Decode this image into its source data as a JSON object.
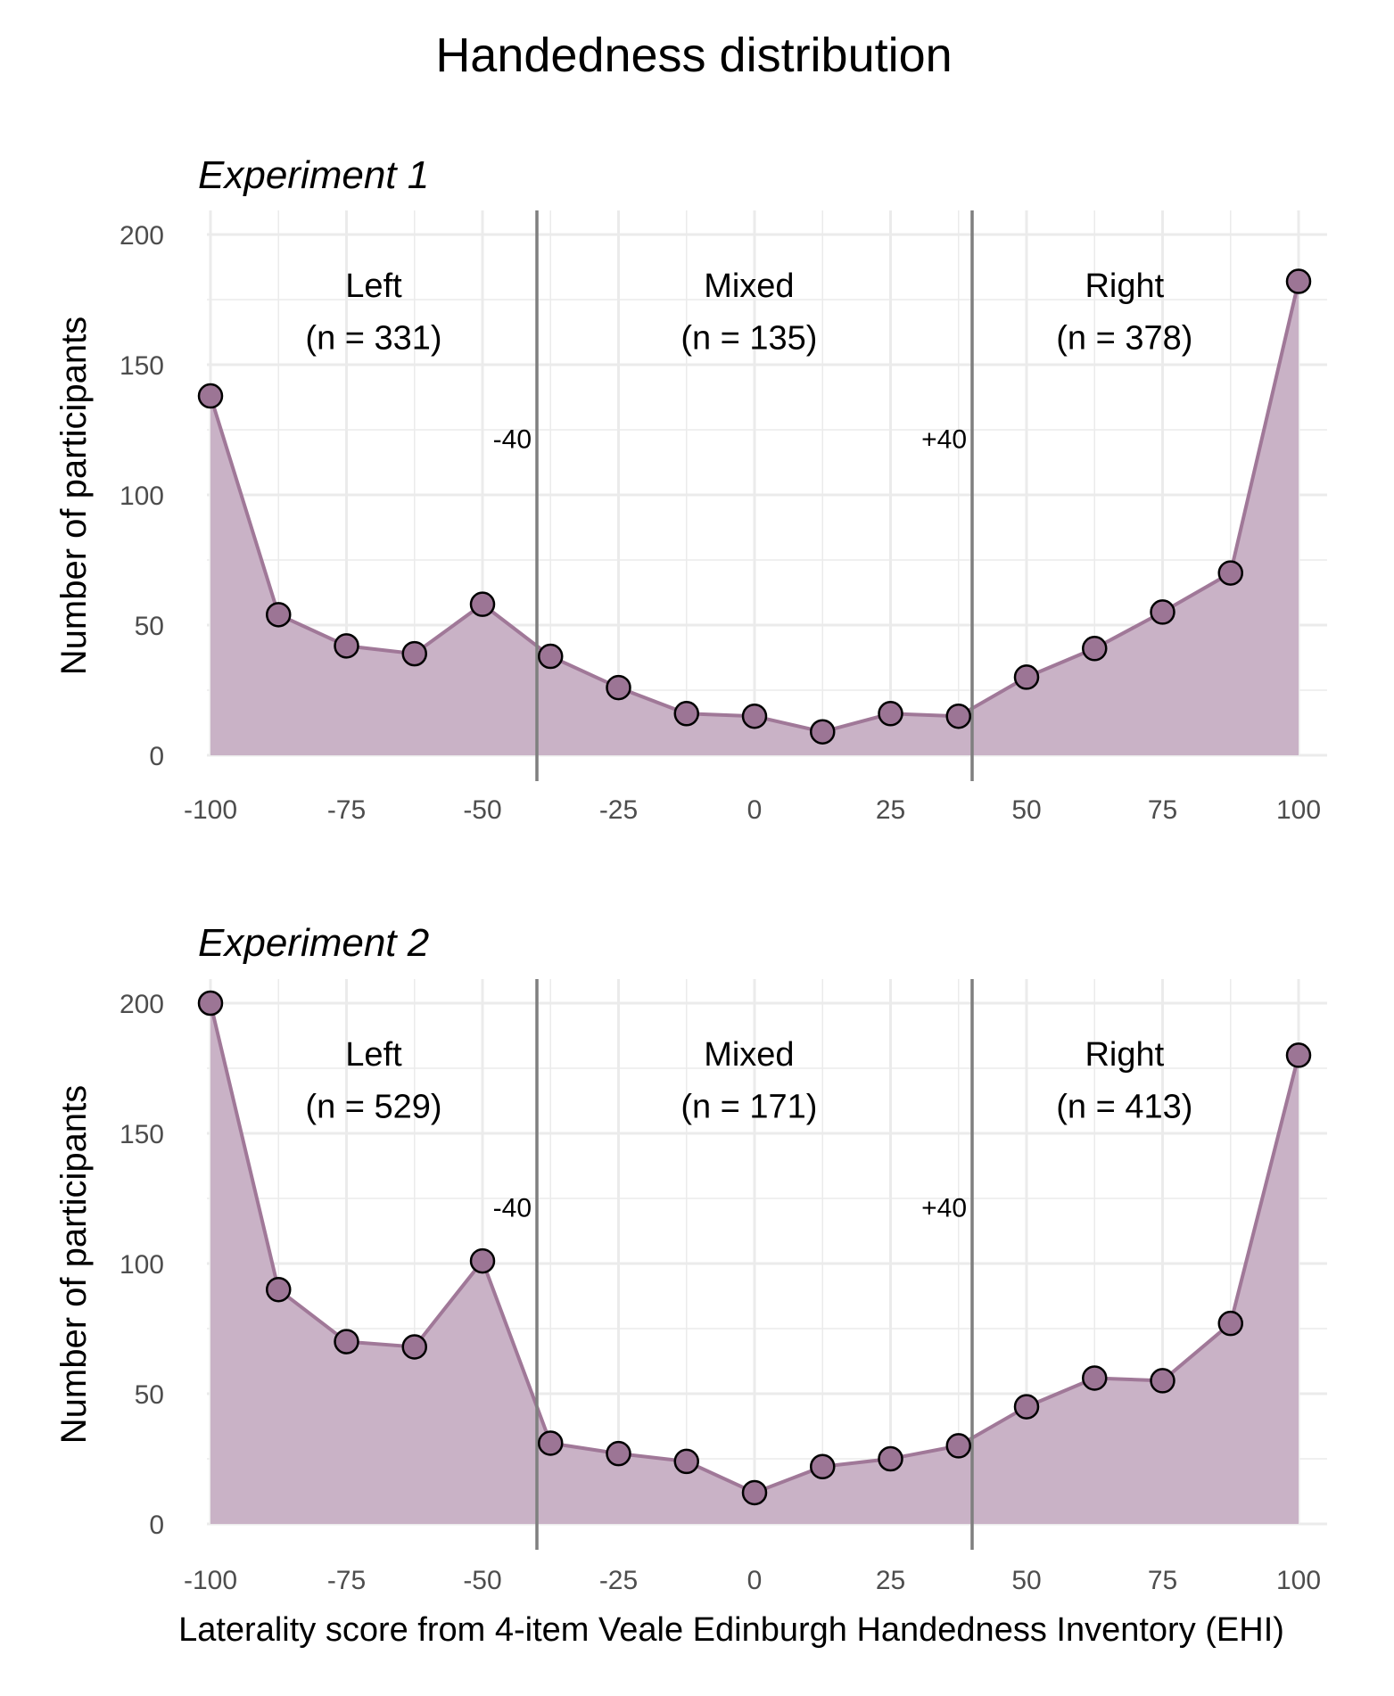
{
  "title": "Handedness distribution",
  "xlabel": "Laterality score from 4-item Veale Edinburgh Handedness Inventory (EHI)",
  "colors": {
    "fill": "#c9b2c6",
    "line": "#a07898",
    "point": "#9c7595",
    "point_edge": "#000000",
    "vline": "#7f7f7f",
    "grid": "#ebebeb"
  },
  "chart_data": [
    {
      "type": "area",
      "title": "Experiment 1",
      "ylabel": "Number of participants",
      "xlim": [
        -100,
        100
      ],
      "ylim": [
        0,
        200
      ],
      "xticks": [
        -100,
        -75,
        -50,
        -25,
        0,
        25,
        50,
        75,
        100
      ],
      "yticks": [
        0,
        50,
        100,
        150,
        200
      ],
      "x": [
        -100,
        -87.5,
        -75,
        -62.5,
        -50,
        -37.5,
        -25,
        -12.5,
        0,
        12.5,
        25,
        37.5,
        50,
        62.5,
        75,
        87.5,
        100
      ],
      "y": [
        138,
        54,
        42,
        39,
        58,
        38,
        26,
        16,
        15,
        9,
        16,
        15,
        30,
        41,
        55,
        70,
        182
      ],
      "thresholds": [
        {
          "x": -40,
          "label": "-40"
        },
        {
          "x": 40,
          "label": "+40"
        }
      ],
      "regions": [
        {
          "name": "Left",
          "n": "(n = 331)",
          "x": -70
        },
        {
          "name": "Mixed",
          "n": "(n = 135)",
          "x": -1
        },
        {
          "name": "Right",
          "n": "(n = 378)",
          "x": 68
        }
      ]
    },
    {
      "type": "area",
      "title": "Experiment 2",
      "ylabel": "Number of participants",
      "xlim": [
        -100,
        100
      ],
      "ylim": [
        0,
        200
      ],
      "xticks": [
        -100,
        -75,
        -50,
        -25,
        0,
        25,
        50,
        75,
        100
      ],
      "yticks": [
        0,
        50,
        100,
        150,
        200
      ],
      "x": [
        -100,
        -87.5,
        -75,
        -62.5,
        -50,
        -37.5,
        -25,
        -12.5,
        0,
        12.5,
        25,
        37.5,
        50,
        62.5,
        75,
        87.5,
        100
      ],
      "y": [
        200,
        90,
        70,
        68,
        101,
        31,
        27,
        24,
        12,
        22,
        25,
        30,
        45,
        56,
        55,
        77,
        180
      ],
      "thresholds": [
        {
          "x": -40,
          "label": "-40"
        },
        {
          "x": 40,
          "label": "+40"
        }
      ],
      "regions": [
        {
          "name": "Left",
          "n": "(n = 529)",
          "x": -70
        },
        {
          "name": "Mixed",
          "n": "(n = 171)",
          "x": -1
        },
        {
          "name": "Right",
          "n": "(n = 413)",
          "x": 68
        }
      ]
    }
  ]
}
